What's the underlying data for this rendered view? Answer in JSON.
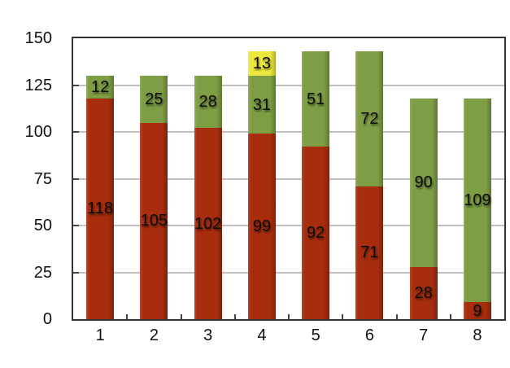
{
  "chart_data": {
    "type": "bar",
    "stacked": true,
    "title": "",
    "xlabel": "",
    "ylabel": "",
    "categories": [
      "1",
      "2",
      "3",
      "4",
      "5",
      "6",
      "7",
      "8"
    ],
    "series": [
      {
        "name": "red-segment",
        "color": "#a72d0e",
        "values": [
          118,
          105,
          102,
          99,
          92,
          71,
          28,
          9
        ]
      },
      {
        "name": "green-segment",
        "color": "#7e9e45",
        "values": [
          12,
          25,
          28,
          31,
          51,
          72,
          90,
          109
        ]
      },
      {
        "name": "yellow-segment",
        "color": "#ece83c",
        "values": [
          0,
          0,
          0,
          13,
          0,
          0,
          0,
          0
        ]
      }
    ],
    "ylim": [
      0,
      150
    ],
    "yticks": [
      0,
      25,
      50,
      75,
      100,
      125,
      150
    ],
    "grid": true,
    "legend": "none",
    "value_labels": "centered-in-segment"
  },
  "style": {
    "background": "#ffffff",
    "plot_border_color": "#333333",
    "gridline_color": "#c1c1c1",
    "tick_color": "#444444",
    "axis_label_color": "#111111",
    "value_label_color": "#0d0d0d"
  }
}
